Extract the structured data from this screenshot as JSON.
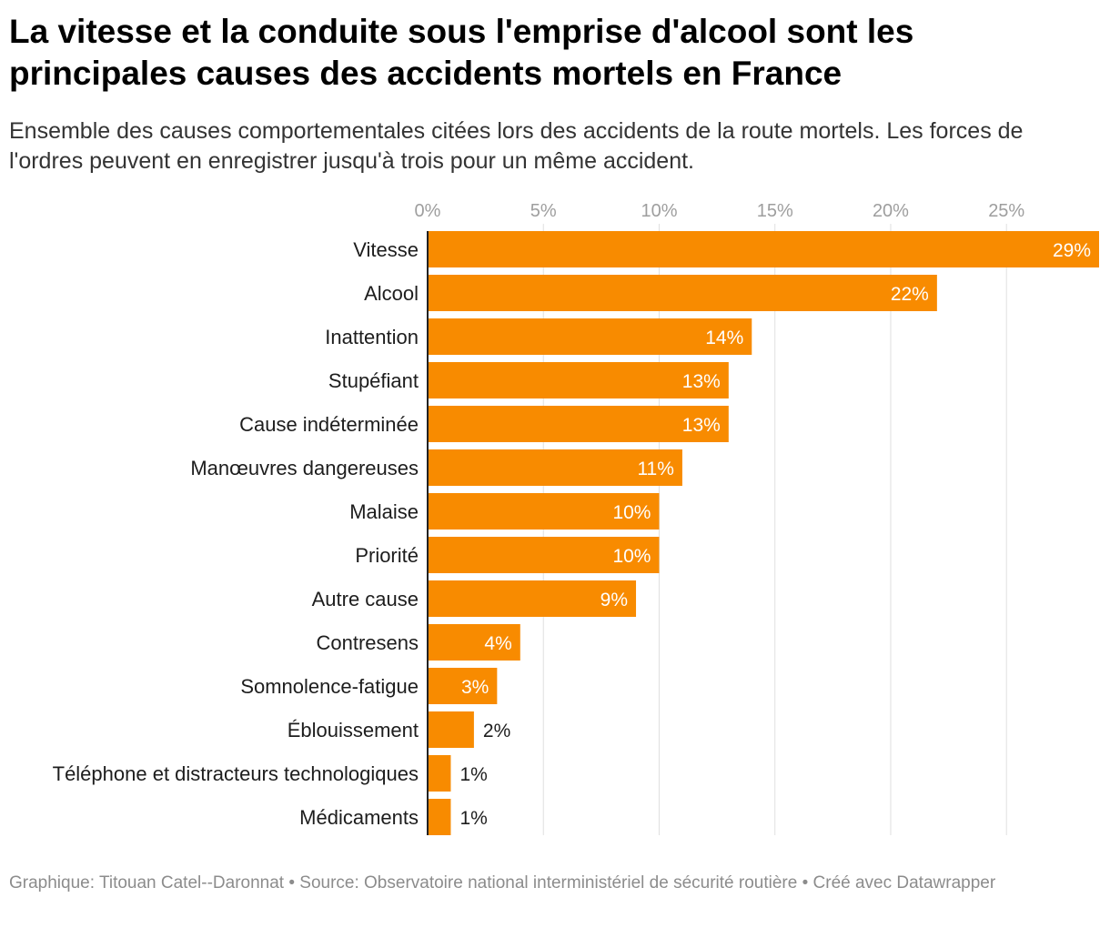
{
  "title": "La vitesse et la conduite sous l'emprise d'alcool sont les principales causes des accidents mortels en France",
  "subtitle": "Ensemble des causes comportementales citées lors des accidents de la route mortels. Les forces de l'ordres peuvent en enregistrer jusqu'à trois pour un même accident.",
  "footer": "Graphique: Titouan Catel--Daronnat • Source: Observatoire national interministériel de sécurité routière • Créé avec Datawrapper",
  "colors": {
    "bar": "#f88b00",
    "grid": "#e0e0e0",
    "axis": "#222222"
  },
  "chart_data": {
    "type": "bar",
    "orientation": "horizontal",
    "categories": [
      "Vitesse",
      "Alcool",
      "Inattention",
      "Stupéfiant",
      "Cause indéterminée",
      "Manœuvres dangereuses",
      "Malaise",
      "Priorité",
      "Autre cause",
      "Contresens",
      "Somnolence-fatigue",
      "Éblouissement",
      "Téléphone et distracteurs technologiques",
      "Médicaments"
    ],
    "values": [
      29,
      22,
      14,
      13,
      13,
      11,
      10,
      10,
      9,
      4,
      3,
      2,
      1,
      1
    ],
    "value_labels": [
      "29%",
      "22%",
      "14%",
      "13%",
      "13%",
      "11%",
      "10%",
      "10%",
      "9%",
      "4%",
      "3%",
      "2%",
      "1%",
      "1%"
    ],
    "ticks": [
      0,
      5,
      10,
      15,
      20,
      25
    ],
    "tick_labels": [
      "0%",
      "5%",
      "10%",
      "15%",
      "20%",
      "25%"
    ],
    "xlim": [
      0,
      29
    ],
    "grid": true,
    "axis_position": "top"
  }
}
